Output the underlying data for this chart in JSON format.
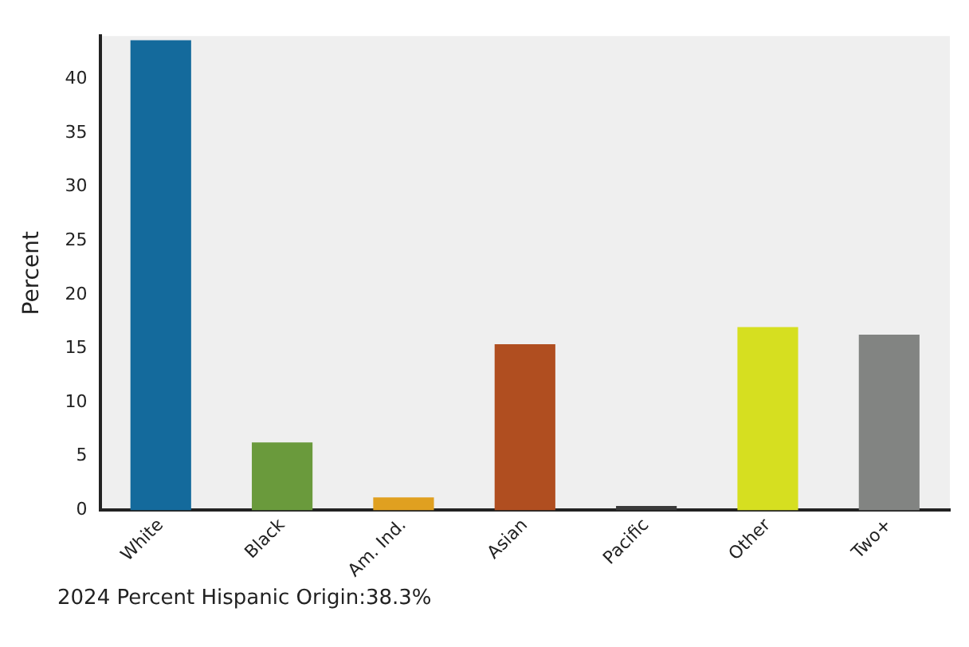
{
  "chart_data": {
    "type": "bar",
    "ylabel": "Percent",
    "categories": [
      "White",
      "Black",
      "Am. Ind.",
      "Asian",
      "Pacific",
      "Other",
      "Two+"
    ],
    "values": [
      43.6,
      6.3,
      1.2,
      15.4,
      0.4,
      17.0,
      16.3
    ],
    "colors": [
      "#146a9c",
      "#6a9a3c",
      "#e0a020",
      "#b04e20",
      "#3a3a3a",
      "#d6df20",
      "#828482"
    ],
    "ylim": [
      0,
      44
    ],
    "yticks": [
      0,
      5,
      10,
      15,
      20,
      25,
      30,
      35,
      40
    ],
    "grid": false,
    "legend": false,
    "annotations": [
      "2024 Percent Hispanic Origin:38.3%"
    ]
  }
}
